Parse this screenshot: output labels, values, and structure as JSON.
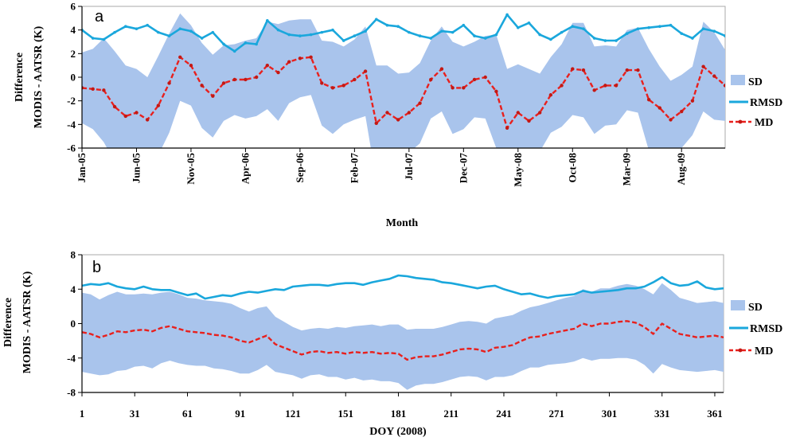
{
  "colors": {
    "sd_fill": "#a9c4ec",
    "rmsd_line": "#1aa7dc",
    "md_line": "#e8201d",
    "md_marker": "#c41813",
    "frame": "#aaaaaa",
    "axis": "#000000"
  },
  "chart_data": [
    {
      "type": "area",
      "panel": "a",
      "xlabel": "Month",
      "ylabel_line1": "Difference",
      "ylabel_line2": "MODIS  -  AATSR   (K)",
      "ylim": [
        -6,
        6
      ],
      "yticks": [
        -6,
        -4,
        -2,
        0,
        2,
        4,
        6
      ],
      "x_count": 60,
      "xtick_indices": [
        0,
        5,
        10,
        15,
        20,
        25,
        30,
        35,
        40,
        45,
        50,
        55
      ],
      "xtick_labels": [
        "Jan-05",
        "Jun-05",
        "Nov-05",
        "Apr-06",
        "Sep-06",
        "Feb-07",
        "Jul-07",
        "Dec-07",
        "May-08",
        "Oct-08",
        "Mar-09",
        "Aug-09"
      ],
      "legend": [
        "SD",
        "RMSD",
        "MD"
      ],
      "series": [
        {
          "name": "RMSD",
          "values": [
            4.0,
            3.3,
            3.2,
            3.8,
            4.3,
            4.1,
            4.4,
            3.8,
            3.5,
            4.1,
            3.9,
            3.3,
            3.8,
            2.8,
            2.2,
            2.9,
            2.8,
            4.8,
            4.0,
            3.6,
            3.5,
            3.6,
            3.8,
            4.0,
            3.1,
            3.5,
            3.9,
            4.9,
            4.4,
            4.3,
            3.8,
            3.5,
            3.3,
            3.9,
            3.8,
            4.4,
            3.5,
            3.3,
            3.6,
            5.3,
            4.2,
            4.6,
            3.6,
            3.2,
            3.8,
            4.3,
            4.1,
            3.3,
            3.1,
            3.1,
            3.7,
            4.1,
            4.2,
            4.3,
            4.4,
            3.7,
            3.3,
            4.1,
            3.9,
            3.5
          ]
        },
        {
          "name": "MD",
          "values": [
            -0.9,
            -1.0,
            -1.1,
            -2.5,
            -3.3,
            -3.0,
            -3.6,
            -2.4,
            -0.5,
            1.7,
            1.0,
            -0.7,
            -1.6,
            -0.5,
            -0.2,
            -0.2,
            0.0,
            1.0,
            0.4,
            1.3,
            1.6,
            1.7,
            -0.5,
            -0.9,
            -0.7,
            -0.2,
            0.5,
            -3.9,
            -3.0,
            -3.6,
            -3.0,
            -2.2,
            -0.2,
            0.7,
            -0.9,
            -0.9,
            -0.2,
            0.0,
            -1.2,
            -4.3,
            -3.0,
            -3.7,
            -3.0,
            -1.5,
            -0.7,
            0.7,
            0.6,
            -1.1,
            -0.7,
            -0.7,
            0.6,
            0.6,
            -1.9,
            -2.6,
            -3.6,
            -2.9,
            -2.0,
            0.9,
            0.1,
            -0.7
          ]
        },
        {
          "name": "SD",
          "values": [
            3.0,
            3.4,
            4.4,
            4.7,
            4.3,
            3.7,
            3.6,
            4.2,
            4.2,
            3.7,
            3.4,
            3.6,
            3.5,
            3.2,
            3.0,
            3.3,
            3.3,
            3.7,
            4.1,
            3.5,
            3.3,
            3.2,
            3.6,
            3.9,
            3.3,
            3.4,
            3.8,
            4.9,
            4.0,
            3.9,
            3.4,
            3.4,
            3.3,
            3.6,
            3.9,
            3.5,
            3.2,
            3.5,
            4.8,
            5.0,
            4.1,
            4.4,
            3.3,
            3.2,
            3.5,
            3.9,
            4.0,
            3.7,
            3.4,
            3.3,
            3.4,
            3.6,
            4.3,
            3.5,
            3.3,
            3.1,
            2.9,
            3.8,
            3.7,
            3.0
          ]
        }
      ]
    },
    {
      "type": "area",
      "panel": "b",
      "xlabel": "DOY (2008)",
      "ylabel_line1": "Difference",
      "ylabel_line2": "MODIS - AATSR   (K)",
      "ylim": [
        -8,
        8
      ],
      "yticks": [
        -8,
        -4,
        0,
        4,
        8
      ],
      "xlim": [
        1,
        366
      ],
      "xticks": [
        1,
        31,
        61,
        91,
        121,
        151,
        181,
        211,
        241,
        271,
        301,
        331,
        361
      ],
      "legend": [
        "SD",
        "RMSD",
        "MD"
      ],
      "x": [
        1,
        6,
        11,
        16,
        21,
        26,
        31,
        36,
        41,
        46,
        51,
        56,
        61,
        66,
        71,
        76,
        81,
        86,
        91,
        96,
        101,
        106,
        111,
        116,
        121,
        126,
        131,
        136,
        141,
        146,
        151,
        156,
        161,
        166,
        171,
        176,
        181,
        186,
        191,
        196,
        201,
        206,
        211,
        216,
        221,
        226,
        231,
        236,
        241,
        246,
        251,
        256,
        261,
        266,
        271,
        276,
        281,
        286,
        291,
        296,
        301,
        306,
        311,
        316,
        321,
        326,
        331,
        336,
        341,
        346,
        351,
        356,
        361,
        366
      ],
      "series": [
        {
          "name": "RMSD",
          "values": [
            4.4,
            4.6,
            4.5,
            4.7,
            4.3,
            4.1,
            4.0,
            4.3,
            4.0,
            3.9,
            3.9,
            3.6,
            3.3,
            3.5,
            2.9,
            3.1,
            3.3,
            3.2,
            3.5,
            3.7,
            3.6,
            3.8,
            4.0,
            3.9,
            4.3,
            4.4,
            4.5,
            4.5,
            4.4,
            4.6,
            4.7,
            4.7,
            4.5,
            4.8,
            5.0,
            5.2,
            5.6,
            5.5,
            5.3,
            5.2,
            5.1,
            4.8,
            4.7,
            4.5,
            4.3,
            4.1,
            4.3,
            4.4,
            4.0,
            3.7,
            3.4,
            3.5,
            3.2,
            3.0,
            3.2,
            3.3,
            3.4,
            3.8,
            3.6,
            3.7,
            3.8,
            3.9,
            4.1,
            4.1,
            4.3,
            4.8,
            5.4,
            4.7,
            4.4,
            4.5,
            4.9,
            4.2,
            4.0,
            4.1
          ]
        },
        {
          "name": "MD",
          "values": [
            -1.0,
            -1.2,
            -1.6,
            -1.3,
            -0.9,
            -1.0,
            -0.8,
            -0.7,
            -0.9,
            -0.5,
            -0.3,
            -0.6,
            -0.9,
            -1.0,
            -1.1,
            -1.3,
            -1.4,
            -1.6,
            -2.0,
            -2.2,
            -1.8,
            -1.4,
            -2.4,
            -2.8,
            -3.2,
            -3.6,
            -3.3,
            -3.2,
            -3.4,
            -3.3,
            -3.5,
            -3.3,
            -3.4,
            -3.3,
            -3.5,
            -3.4,
            -3.5,
            -4.2,
            -3.9,
            -3.8,
            -3.8,
            -3.6,
            -3.3,
            -3.0,
            -2.9,
            -3.0,
            -3.3,
            -2.8,
            -2.7,
            -2.5,
            -2.0,
            -1.6,
            -1.5,
            -1.2,
            -1.0,
            -0.8,
            -0.6,
            0.0,
            -0.3,
            0.0,
            0.0,
            0.2,
            0.3,
            0.1,
            -0.4,
            -1.2,
            0.0,
            -0.6,
            -1.2,
            -1.4,
            -1.6,
            -1.5,
            -1.4,
            -1.6
          ]
        },
        {
          "name": "SD",
          "values": [
            4.6,
            4.6,
            4.4,
            4.6,
            4.6,
            4.4,
            4.2,
            4.2,
            4.3,
            4.1,
            4.0,
            4.0,
            3.9,
            3.9,
            3.8,
            3.9,
            3.9,
            3.9,
            3.8,
            3.6,
            3.6,
            3.4,
            3.2,
            3.0,
            2.8,
            2.8,
            2.7,
            2.7,
            2.8,
            2.9,
            3.0,
            3.0,
            3.2,
            3.2,
            3.2,
            3.3,
            3.4,
            3.5,
            3.3,
            3.2,
            3.2,
            3.2,
            3.2,
            3.2,
            3.2,
            3.2,
            3.3,
            3.4,
            3.5,
            3.5,
            3.5,
            3.5,
            3.6,
            3.6,
            3.7,
            3.8,
            3.8,
            4.0,
            4.0,
            4.1,
            4.1,
            4.2,
            4.3,
            4.3,
            4.4,
            4.6,
            4.7,
            4.5,
            4.2,
            4.1,
            4.0,
            4.0,
            4.0,
            4.0
          ]
        }
      ]
    }
  ]
}
